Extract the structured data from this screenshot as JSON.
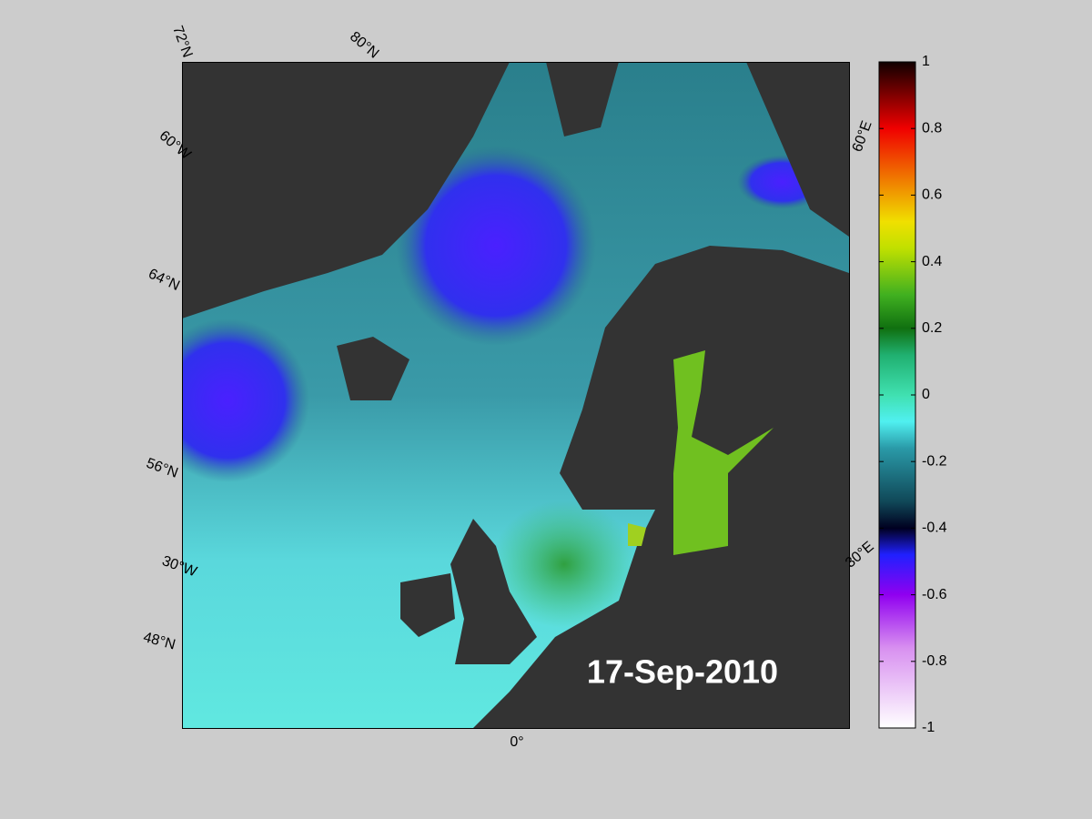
{
  "map": {
    "graticule_labels": [
      "72°N",
      "80°N",
      "60°W",
      "64°N",
      "56°N",
      "30°W",
      "48°N",
      "0°",
      "60°E",
      "30°E"
    ],
    "date": "17-Sep-2010"
  },
  "colorbar": {
    "type": "colorbar",
    "lim": [
      -1,
      1
    ],
    "ticks": [
      1,
      0.8,
      0.6,
      0.4,
      0.2,
      0,
      -0.2,
      -0.4,
      -0.6,
      -0.8,
      -1
    ]
  }
}
